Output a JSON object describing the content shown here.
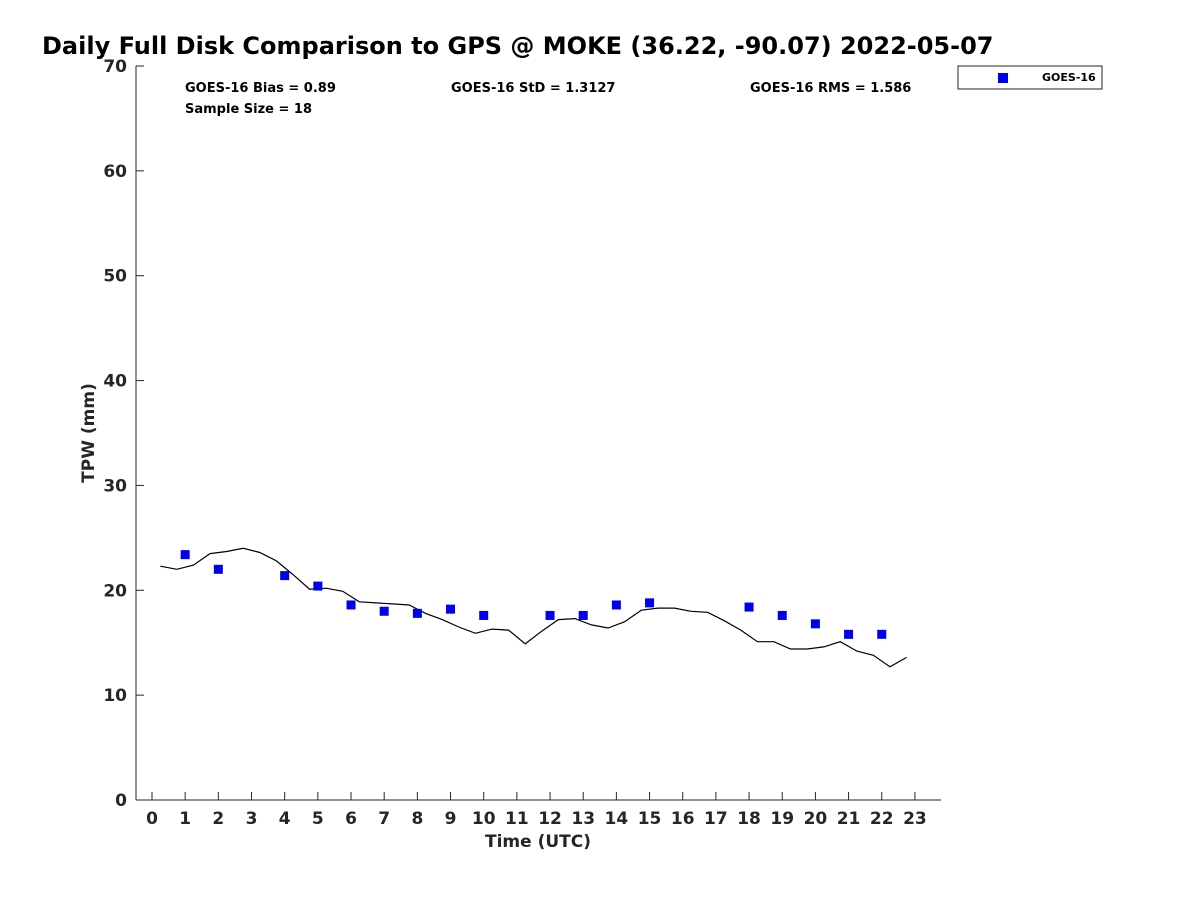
{
  "chart_data": {
    "type": "scatter",
    "title": "Daily Full Disk Comparison to GPS @ MOKE (36.22, -90.07) 2022-05-07",
    "xlabel": "Time (UTC)",
    "ylabel": "TPW (mm)",
    "xlim": [
      -0.5,
      23.75
    ],
    "ylim": [
      0,
      70
    ],
    "xticks": [
      0,
      1,
      2,
      3,
      4,
      5,
      6,
      7,
      8,
      9,
      10,
      11,
      12,
      13,
      14,
      15,
      16,
      17,
      18,
      19,
      20,
      21,
      22,
      23
    ],
    "yticks": [
      0,
      10,
      20,
      30,
      40,
      50,
      60,
      70
    ],
    "grid": false,
    "legend_position": "top-right outside",
    "stats": {
      "bias": "GOES-16 Bias = 0.89",
      "std": "GOES-16 StD = 1.3127",
      "rms": "GOES-16 RMS = 1.586",
      "sample": "Sample Size = 18"
    },
    "series": [
      {
        "name": "GOES-16",
        "kind": "scatter",
        "marker": "square",
        "color": "#0000ee",
        "x": [
          1,
          2,
          4,
          5,
          6,
          7,
          8,
          9,
          10,
          12,
          13,
          14,
          15,
          18,
          19,
          20,
          21,
          22
        ],
        "y": [
          23.4,
          22.0,
          21.4,
          20.4,
          18.6,
          18.0,
          17.8,
          18.2,
          17.6,
          17.6,
          17.6,
          18.6,
          18.8,
          18.4,
          17.6,
          16.8,
          15.8,
          15.8
        ]
      },
      {
        "kind": "line",
        "color": "#000000",
        "x": [
          0.25,
          0.75,
          1.25,
          1.75,
          2.25,
          2.75,
          3.25,
          3.75,
          4.25,
          4.75,
          5.25,
          5.75,
          6.25,
          6.75,
          7.25,
          7.75,
          8.25,
          8.75,
          9.25,
          9.75,
          10.25,
          10.75,
          11.25,
          11.75,
          12.25,
          12.75,
          13.25,
          13.75,
          14.25,
          14.75,
          15.25,
          15.75,
          16.25,
          16.75,
          17.25,
          17.75,
          18.25,
          18.75,
          19.25,
          19.75,
          20.25,
          20.75,
          21.25,
          21.75,
          22.25,
          22.75
        ],
        "y": [
          22.3,
          22.0,
          22.4,
          23.5,
          23.7,
          24.0,
          23.6,
          22.8,
          21.5,
          20.1,
          20.2,
          19.9,
          18.9,
          18.8,
          18.7,
          18.6,
          17.8,
          17.2,
          16.5,
          15.9,
          16.3,
          16.2,
          14.9,
          16.1,
          17.2,
          17.3,
          16.7,
          16.4,
          17.0,
          18.1,
          18.3,
          18.3,
          18.0,
          17.9,
          17.1,
          16.2,
          15.1,
          15.1,
          14.4,
          14.4,
          14.6,
          15.1,
          14.2,
          13.8,
          12.7,
          13.6
        ]
      }
    ]
  }
}
